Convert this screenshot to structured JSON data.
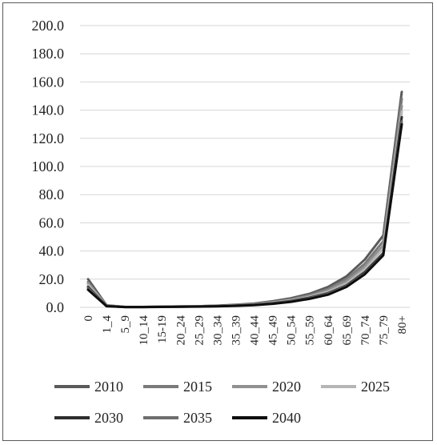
{
  "chart_data": {
    "type": "line",
    "title": "",
    "xlabel": "",
    "ylabel": "",
    "ylim": [
      0,
      200
    ],
    "yticks": [
      "0.0",
      "20.0",
      "40.0",
      "60.0",
      "80.0",
      "100.0",
      "120.0",
      "140.0",
      "160.0",
      "180.0",
      "200.0"
    ],
    "grid": true,
    "legend_position": "bottom",
    "categories": [
      "0",
      "1_4",
      "5_9",
      "10_14",
      "15-19",
      "20_24",
      "25_29",
      "30_34",
      "35_39",
      "40_44",
      "45_49",
      "50_54",
      "55_59",
      "60_64",
      "65_69",
      "70_74",
      "75_79",
      "80+"
    ],
    "series": [
      {
        "name": "2010",
        "color": "#5a5a5a",
        "values": [
          20.0,
          1.5,
          0.3,
          0.3,
          0.5,
          0.6,
          0.8,
          1.2,
          1.8,
          2.7,
          4.3,
          6.5,
          9.6,
          14.5,
          22.0,
          34.0,
          51.0,
          153.0
        ]
      },
      {
        "name": "2015",
        "color": "#7a7a7a",
        "values": [
          18.0,
          1.3,
          0.3,
          0.3,
          0.5,
          0.6,
          0.8,
          1.1,
          1.6,
          2.4,
          3.8,
          5.8,
          8.7,
          13.0,
          20.0,
          31.0,
          47.0,
          148.0
        ]
      },
      {
        "name": "2020",
        "color": "#909090",
        "values": [
          17.0,
          1.2,
          0.3,
          0.3,
          0.4,
          0.5,
          0.7,
          1.0,
          1.5,
          2.2,
          3.5,
          5.3,
          8.0,
          12.0,
          18.5,
          29.0,
          44.0,
          143.0
        ]
      },
      {
        "name": "2025",
        "color": "#b5b5b5",
        "values": [
          16.0,
          1.1,
          0.2,
          0.2,
          0.4,
          0.5,
          0.7,
          0.9,
          1.4,
          2.0,
          3.2,
          4.9,
          7.4,
          11.0,
          17.0,
          27.0,
          42.0,
          139.0
        ]
      },
      {
        "name": "2030",
        "color": "#2e2e2e",
        "values": [
          14.5,
          1.0,
          0.2,
          0.2,
          0.4,
          0.5,
          0.6,
          0.9,
          1.3,
          1.9,
          2.9,
          4.5,
          6.8,
          10.0,
          15.5,
          25.0,
          38.5,
          135.0
        ]
      },
      {
        "name": "2035",
        "color": "#6e6e6e",
        "values": [
          13.5,
          0.9,
          0.2,
          0.2,
          0.3,
          0.4,
          0.6,
          0.8,
          1.2,
          1.7,
          2.7,
          4.2,
          6.4,
          9.5,
          15.0,
          24.0,
          37.5,
          132.0
        ]
      },
      {
        "name": "2040",
        "color": "#0e0e0e",
        "values": [
          12.5,
          0.8,
          0.2,
          0.2,
          0.3,
          0.4,
          0.5,
          0.7,
          1.1,
          1.6,
          2.5,
          3.9,
          6.0,
          9.0,
          14.5,
          23.5,
          37.0,
          130.0
        ]
      }
    ]
  }
}
